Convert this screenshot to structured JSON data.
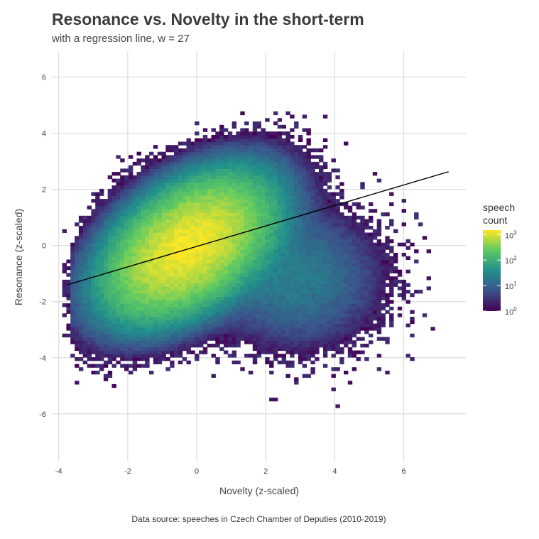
{
  "chart_data": {
    "type": "heatmap",
    "title": "Resonance vs. Novelty in the short-term",
    "subtitle": "with a regression line, w = 27",
    "caption": "Data source: speeches in Czech Chamber of Deputies (2010-2019)",
    "xlabel": "Novelty (z-scaled)",
    "ylabel": "Resonance (z-scaled)",
    "xlim": [
      -4.2,
      7.8
    ],
    "ylim": [
      -7.7,
      6.9
    ],
    "xticks": [
      "-4",
      "-2",
      "0",
      "2",
      "4",
      "6"
    ],
    "yticks": [
      "-6",
      "-4",
      "-2",
      "0",
      "2",
      "4",
      "6"
    ],
    "grid": true,
    "legend": {
      "title": [
        "speech",
        "count"
      ],
      "position": "right",
      "scale": "log10",
      "range": [
        1,
        1500
      ],
      "labels": [
        {
          "base": "10",
          "exp": "0",
          "value": 1
        },
        {
          "base": "10",
          "exp": "1",
          "value": 10
        },
        {
          "base": "10",
          "exp": "2",
          "value": 100
        },
        {
          "base": "10",
          "exp": "3",
          "value": 1000
        }
      ]
    },
    "regression_line": {
      "x": [
        -3.75,
        7.3
      ],
      "y": [
        -1.4,
        2.63
      ]
    },
    "colors": {
      "low": "#440154",
      "mid1": "#3b528b",
      "mid2": "#21908c",
      "mid3": "#5dc963",
      "high": "#fde725",
      "grid": "#d9d9d9",
      "line": "#000000"
    },
    "density_model": {
      "bin_width": 0.12,
      "core": {
        "mean": [
          -0.3,
          -0.1
        ],
        "sd": [
          1.05,
          1.1
        ],
        "rho": 0.45,
        "peak": 1400
      },
      "tail": {
        "mean": [
          2.8,
          -1.2
        ],
        "sd": [
          1.2,
          1.2
        ],
        "weight": 0.015
      }
    }
  }
}
